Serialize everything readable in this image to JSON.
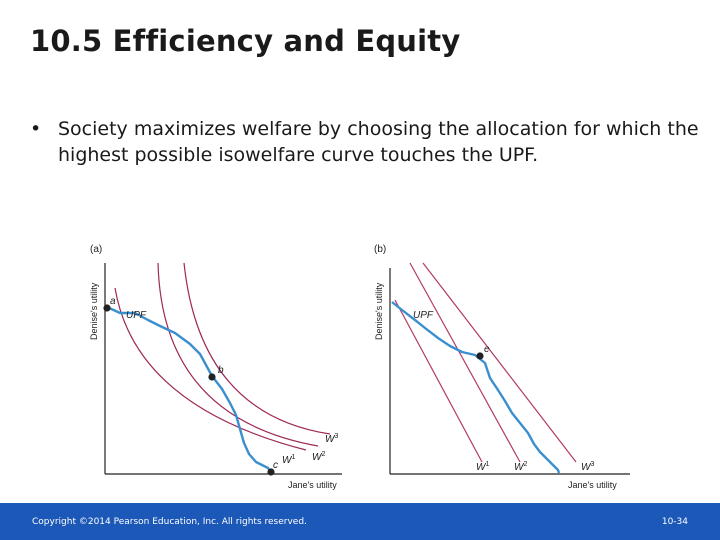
{
  "slide": {
    "title": "10.5  Efficiency and Equity",
    "bullets": [
      "Society maximizes welfare by choosing the allocation for which the highest possible isowelfare curve touches the UPF."
    ],
    "bullet_marker": "•"
  },
  "figure": {
    "panel_a": {
      "label": "(a)",
      "y_axis": "Denise's utility",
      "x_axis": "Jane's utility",
      "upf_label": "UPF",
      "points": [
        "a",
        "b",
        "c"
      ],
      "curves": [
        {
          "base": "W",
          "sup": "1"
        },
        {
          "base": "W",
          "sup": "2"
        },
        {
          "base": "W",
          "sup": "3"
        }
      ]
    },
    "panel_b": {
      "label": "(b)",
      "y_axis": "Denise's utility",
      "x_axis": "Jane's utility",
      "upf_label": "UPF",
      "points": [
        "e"
      ],
      "curves": [
        {
          "base": "W",
          "sup": "1"
        },
        {
          "base": "W",
          "sup": "2"
        },
        {
          "base": "W",
          "sup": "3"
        }
      ]
    },
    "colors": {
      "upf": "#3a8fcf",
      "isowelfare_a": "#9e2a56",
      "isowelfare_b": "#b23a68",
      "axes": "#222222"
    }
  },
  "footer": {
    "copyright": "Copyright ©2014 Pearson Education, Inc. All rights reserved.",
    "slide_number": "10-34",
    "background": "#1c58b8"
  }
}
